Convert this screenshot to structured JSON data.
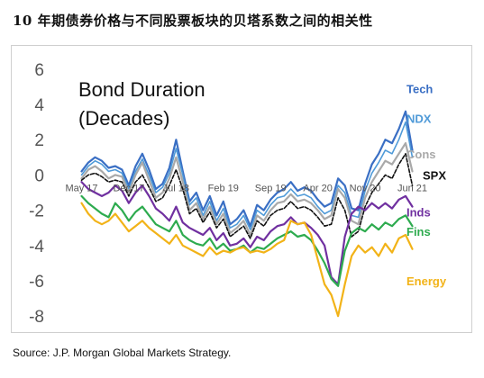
{
  "page": {
    "title": "10 年期债券价格与不同股票板块的贝塔系数之间的相关性",
    "source": "Source: J.P. Morgan Global Markets Strategy."
  },
  "chart_data": {
    "type": "line",
    "annotation_lines": [
      "Bond Duration",
      "(Decades)"
    ],
    "x_tick_labels": [
      "May 17",
      "Dec 17",
      "Jul 18",
      "Feb 19",
      "Sep 19",
      "Apr 20",
      "Nov 20",
      "Jun 21"
    ],
    "x_tick_positions": [
      0,
      7,
      14,
      21,
      28,
      35,
      42,
      49
    ],
    "xlim": [
      -1,
      50
    ],
    "ylim": [
      -8.4,
      6.6
    ],
    "y_ticks": [
      6,
      4,
      2,
      0,
      -2,
      -4,
      -6,
      -8
    ],
    "y_tick_labels": [
      "6",
      "4",
      "2",
      "0",
      "-2",
      "-4",
      "-6",
      "-8"
    ],
    "grid": false,
    "series": [
      {
        "name": "Tech",
        "color": "#3a6fc4",
        "width": 2.2,
        "label_y": 4.9,
        "x": [
          0,
          1,
          2,
          3,
          4,
          5,
          6,
          7,
          8,
          9,
          10,
          11,
          12,
          13,
          14,
          15,
          16,
          17,
          18,
          19,
          20,
          21,
          22,
          23,
          24,
          25,
          26,
          27,
          28,
          29,
          30,
          31,
          32,
          33,
          34,
          35,
          36,
          37,
          38,
          39,
          40,
          41,
          42,
          43,
          44,
          45,
          46,
          47,
          48,
          49
        ],
        "values": [
          0.2,
          0.7,
          1.0,
          0.8,
          0.4,
          0.5,
          0.3,
          -0.6,
          0.5,
          1.2,
          0.3,
          -0.8,
          -0.5,
          0.4,
          2.0,
          0.2,
          -1.5,
          -1.0,
          -2.0,
          -1.2,
          -2.3,
          -1.5,
          -2.8,
          -2.5,
          -2.0,
          -2.9,
          -1.7,
          -2.0,
          -1.4,
          -1.0,
          -0.8,
          -0.4,
          -0.9,
          -0.7,
          -0.9,
          -1.4,
          -1.8,
          -1.6,
          -0.2,
          -0.6,
          -1.9,
          -2.0,
          -0.5,
          0.6,
          1.2,
          2.0,
          1.8,
          2.6,
          3.6,
          1.4
        ]
      },
      {
        "name": "NDX",
        "color": "#4f9ad8",
        "width": 1.6,
        "label_y": 3.2,
        "x": [
          0,
          1,
          2,
          3,
          4,
          5,
          6,
          7,
          8,
          9,
          10,
          11,
          12,
          13,
          14,
          15,
          16,
          17,
          18,
          19,
          20,
          21,
          22,
          23,
          24,
          25,
          26,
          27,
          28,
          29,
          30,
          31,
          32,
          33,
          34,
          35,
          36,
          37,
          38,
          39,
          40,
          41,
          42,
          43,
          44,
          45,
          46,
          47,
          48,
          49
        ],
        "values": [
          0.0,
          0.5,
          0.8,
          0.6,
          0.2,
          0.3,
          0.1,
          -0.8,
          0.2,
          0.9,
          0.0,
          -1.0,
          -0.7,
          0.1,
          1.5,
          0.0,
          -1.7,
          -1.3,
          -2.3,
          -1.5,
          -2.6,
          -1.9,
          -3.0,
          -2.8,
          -2.3,
          -3.1,
          -2.0,
          -2.3,
          -1.7,
          -1.3,
          -1.2,
          -0.8,
          -1.2,
          -1.1,
          -1.3,
          -1.8,
          -2.2,
          -2.0,
          -0.6,
          -1.0,
          -2.3,
          -2.4,
          -0.9,
          0.1,
          0.7,
          1.4,
          1.2,
          2.0,
          3.0,
          1.0
        ]
      },
      {
        "name": "Cons",
        "color": "#a9a9a9",
        "width": 2.2,
        "label_y": 1.2,
        "x": [
          0,
          1,
          2,
          3,
          4,
          5,
          6,
          7,
          8,
          9,
          10,
          11,
          12,
          13,
          14,
          15,
          16,
          17,
          18,
          19,
          20,
          21,
          22,
          23,
          24,
          25,
          26,
          27,
          28,
          29,
          30,
          31,
          32,
          33,
          34,
          35,
          36,
          37,
          38,
          39,
          40,
          41,
          42,
          43,
          44,
          45,
          46,
          47,
          48,
          49
        ],
        "values": [
          -0.2,
          0.3,
          0.5,
          0.2,
          -0.2,
          0.0,
          -0.1,
          -1.0,
          0.0,
          0.7,
          -0.3,
          -1.3,
          -1.0,
          -0.2,
          1.0,
          -0.4,
          -2.0,
          -1.6,
          -2.5,
          -1.8,
          -2.8,
          -2.2,
          -3.3,
          -3.0,
          -2.6,
          -3.4,
          -2.3,
          -2.6,
          -2.0,
          -1.6,
          -1.5,
          -1.1,
          -1.5,
          -1.4,
          -1.6,
          -2.0,
          -2.5,
          -2.3,
          -0.8,
          -1.3,
          -2.6,
          -2.8,
          -1.3,
          -0.4,
          0.2,
          0.8,
          0.6,
          1.2,
          1.8,
          0.2
        ]
      },
      {
        "name": "SPX",
        "color": "#111111",
        "width": 1.6,
        "dash": "4,2",
        "label_y": 0.0,
        "x": [
          0,
          1,
          2,
          3,
          4,
          5,
          6,
          7,
          8,
          9,
          10,
          11,
          12,
          13,
          14,
          15,
          16,
          17,
          18,
          19,
          20,
          21,
          22,
          23,
          24,
          25,
          26,
          27,
          28,
          29,
          30,
          31,
          32,
          33,
          34,
          35,
          36,
          37,
          38,
          39,
          40,
          41,
          42,
          43,
          44,
          45,
          46,
          47,
          48,
          49
        ],
        "values": [
          -0.3,
          0.0,
          0.1,
          -0.1,
          -0.4,
          -0.3,
          -0.4,
          -1.2,
          -0.4,
          0.0,
          -0.7,
          -1.5,
          -1.3,
          -0.6,
          0.3,
          -0.8,
          -2.2,
          -1.9,
          -2.7,
          -2.1,
          -3.0,
          -2.5,
          -3.5,
          -3.2,
          -2.9,
          -3.6,
          -2.6,
          -2.9,
          -2.3,
          -2.0,
          -1.9,
          -1.5,
          -1.9,
          -1.8,
          -2.0,
          -2.4,
          -2.9,
          -2.8,
          -1.3,
          -2.0,
          -3.5,
          -3.2,
          -1.8,
          -1.0,
          -0.5,
          0.0,
          -0.2,
          0.6,
          1.2,
          -0.6
        ]
      },
      {
        "name": "Inds",
        "color": "#7030a0",
        "width": 2.2,
        "label_y": -2.1,
        "x": [
          0,
          1,
          2,
          3,
          4,
          5,
          6,
          7,
          8,
          9,
          10,
          11,
          12,
          13,
          14,
          15,
          16,
          17,
          18,
          19,
          20,
          21,
          22,
          23,
          24,
          25,
          26,
          27,
          28,
          29,
          30,
          31,
          32,
          33,
          34,
          35,
          36,
          37,
          38,
          39,
          40,
          41,
          42,
          43,
          44,
          45,
          46,
          47,
          48,
          49
        ],
        "values": [
          -0.4,
          -0.8,
          -1.0,
          -1.2,
          -1.0,
          -0.6,
          -0.9,
          -1.6,
          -1.0,
          -0.6,
          -1.2,
          -1.9,
          -2.2,
          -2.6,
          -1.8,
          -2.7,
          -3.0,
          -3.2,
          -3.4,
          -3.0,
          -3.7,
          -3.3,
          -4.0,
          -3.9,
          -3.6,
          -4.1,
          -3.5,
          -3.7,
          -3.2,
          -2.9,
          -2.8,
          -2.4,
          -2.8,
          -2.7,
          -3.0,
          -3.4,
          -4.0,
          -5.8,
          -6.2,
          -3.5,
          -2.2,
          -1.8,
          -2.0,
          -1.6,
          -1.9,
          -1.6,
          -1.9,
          -1.4,
          -1.2,
          -1.8
        ]
      },
      {
        "name": "Fins",
        "color": "#2eab4f",
        "width": 2.2,
        "label_y": -3.2,
        "x": [
          0,
          1,
          2,
          3,
          4,
          5,
          6,
          7,
          8,
          9,
          10,
          11,
          12,
          13,
          14,
          15,
          16,
          17,
          18,
          19,
          20,
          21,
          22,
          23,
          24,
          25,
          26,
          27,
          28,
          29,
          30,
          31,
          32,
          33,
          34,
          35,
          36,
          37,
          38,
          39,
          40,
          41,
          42,
          43,
          44,
          45,
          46,
          47,
          48,
          49
        ],
        "values": [
          -1.2,
          -1.6,
          -1.9,
          -2.2,
          -2.4,
          -1.6,
          -2.0,
          -2.6,
          -2.1,
          -1.8,
          -2.3,
          -2.8,
          -3.0,
          -3.2,
          -2.6,
          -3.4,
          -3.7,
          -3.9,
          -4.0,
          -3.6,
          -4.2,
          -3.9,
          -4.3,
          -4.2,
          -4.0,
          -4.4,
          -4.1,
          -4.2,
          -3.9,
          -3.6,
          -3.4,
          -3.2,
          -3.5,
          -3.4,
          -3.7,
          -4.3,
          -5.0,
          -5.9,
          -6.3,
          -4.3,
          -3.3,
          -3.0,
          -3.2,
          -2.8,
          -3.1,
          -2.7,
          -2.9,
          -2.5,
          -2.3,
          -2.9
        ]
      },
      {
        "name": "Energy",
        "color": "#f2b318",
        "width": 2.2,
        "label_y": -6.0,
        "x": [
          0,
          1,
          2,
          3,
          4,
          5,
          6,
          7,
          8,
          9,
          10,
          11,
          12,
          13,
          14,
          15,
          16,
          17,
          18,
          19,
          20,
          21,
          22,
          23,
          24,
          25,
          26,
          27,
          28,
          29,
          30,
          31,
          32,
          33,
          34,
          35,
          36,
          37,
          38,
          39,
          40,
          41,
          42,
          43,
          44,
          45,
          46,
          47,
          48,
          49
        ],
        "values": [
          -1.6,
          -2.2,
          -2.6,
          -2.8,
          -2.6,
          -2.2,
          -2.7,
          -3.2,
          -2.9,
          -2.6,
          -3.0,
          -3.3,
          -3.6,
          -3.9,
          -3.4,
          -4.0,
          -4.2,
          -4.4,
          -4.6,
          -4.1,
          -4.5,
          -4.3,
          -4.4,
          -4.2,
          -4.1,
          -4.4,
          -4.3,
          -4.4,
          -4.2,
          -3.9,
          -3.7,
          -2.6,
          -2.8,
          -2.7,
          -3.4,
          -4.8,
          -6.2,
          -6.8,
          -8.0,
          -6.2,
          -4.6,
          -4.0,
          -4.4,
          -4.1,
          -4.6,
          -3.9,
          -4.4,
          -3.6,
          -3.4,
          -4.2
        ]
      }
    ]
  }
}
